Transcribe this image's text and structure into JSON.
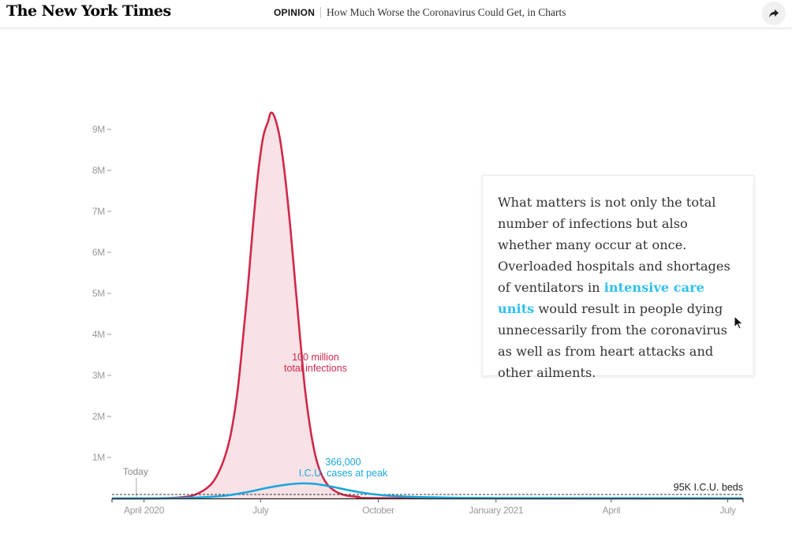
{
  "header": {
    "logo": "The New York Times",
    "section": "OPINION",
    "headline": "How Much Worse the Coronavirus Could Get, in Charts",
    "share_icon": "share-arrow-icon"
  },
  "textbox": {
    "part1": "What matters is not only the total number of infections but also whether many occur at once. Overloaded hospitals and shortages of ventilators in ",
    "link": "intensive care units",
    "part2": " would result in people dying unnecessarily from the coronavirus as well as from heart attacks and other ailments."
  },
  "chart_data": {
    "type": "area",
    "y_tick_labels": [
      "1M",
      "2M",
      "3M",
      "4M",
      "5M",
      "6M",
      "7M",
      "8M",
      "9M"
    ],
    "y_ticks": [
      1000000,
      2000000,
      3000000,
      4000000,
      5000000,
      6000000,
      7000000,
      8000000,
      9000000
    ],
    "ylim": [
      0,
      9000000
    ],
    "x_tick_labels": [
      {
        "label": "April 2020",
        "date": "2020-04-01"
      },
      {
        "label": "July",
        "date": "2020-07-01"
      },
      {
        "label": "October",
        "date": "2020-10-01"
      },
      {
        "label": "January 2021",
        "date": "2021-01-01"
      },
      {
        "label": "April",
        "date": "2021-04-01"
      },
      {
        "label": "July",
        "date": "2021-07-01"
      }
    ],
    "xlim": [
      "2020-03-07",
      "2021-07-13"
    ],
    "grid": false,
    "series": [
      {
        "label": "100 million\ntotal infections",
        "color": "#d0284a",
        "fill": "#f8e2e6",
        "points": [
          [
            "2020-03-07",
            0
          ],
          [
            "2020-04-15",
            5000
          ],
          [
            "2020-05-01",
            30000
          ],
          [
            "2020-05-10",
            80000
          ],
          [
            "2020-05-20",
            250000
          ],
          [
            "2020-05-27",
            500000
          ],
          [
            "2020-06-03",
            1000000
          ],
          [
            "2020-06-08",
            1600000
          ],
          [
            "2020-06-13",
            2600000
          ],
          [
            "2020-06-17",
            3800000
          ],
          [
            "2020-06-21",
            5100000
          ],
          [
            "2020-06-25",
            6600000
          ],
          [
            "2020-06-29",
            7900000
          ],
          [
            "2020-07-03",
            8800000
          ],
          [
            "2020-07-07",
            9200000
          ],
          [
            "2020-07-09",
            9400000
          ],
          [
            "2020-07-12",
            9300000
          ],
          [
            "2020-07-16",
            8800000
          ],
          [
            "2020-07-20",
            7900000
          ],
          [
            "2020-07-24",
            6700000
          ],
          [
            "2020-07-28",
            5300000
          ],
          [
            "2020-08-01",
            3900000
          ],
          [
            "2020-08-05",
            2600000
          ],
          [
            "2020-08-10",
            1500000
          ],
          [
            "2020-08-15",
            800000
          ],
          [
            "2020-08-22",
            350000
          ],
          [
            "2020-09-01",
            120000
          ],
          [
            "2020-09-15",
            40000
          ],
          [
            "2020-10-15",
            5000
          ],
          [
            "2021-07-13",
            0
          ]
        ]
      },
      {
        "label": "366,000\nI.C.U. cases at peak",
        "color": "#1aa7dd",
        "points": [
          [
            "2020-03-07",
            0
          ],
          [
            "2020-05-01",
            10000
          ],
          [
            "2020-06-01",
            60000
          ],
          [
            "2020-06-20",
            150000
          ],
          [
            "2020-07-05",
            250000
          ],
          [
            "2020-07-20",
            330000
          ],
          [
            "2020-08-01",
            366000
          ],
          [
            "2020-08-12",
            355000
          ],
          [
            "2020-08-25",
            290000
          ],
          [
            "2020-09-08",
            200000
          ],
          [
            "2020-09-25",
            110000
          ],
          [
            "2020-10-15",
            55000
          ],
          [
            "2020-11-15",
            25000
          ],
          [
            "2021-01-01",
            10000
          ],
          [
            "2021-07-13",
            2000
          ]
        ]
      }
    ],
    "annotations": [
      {
        "text": "Today",
        "date": "2020-03-26"
      },
      {
        "text": "95K I.C.U. beds",
        "value": 95000,
        "style": "dashed-line"
      }
    ]
  }
}
